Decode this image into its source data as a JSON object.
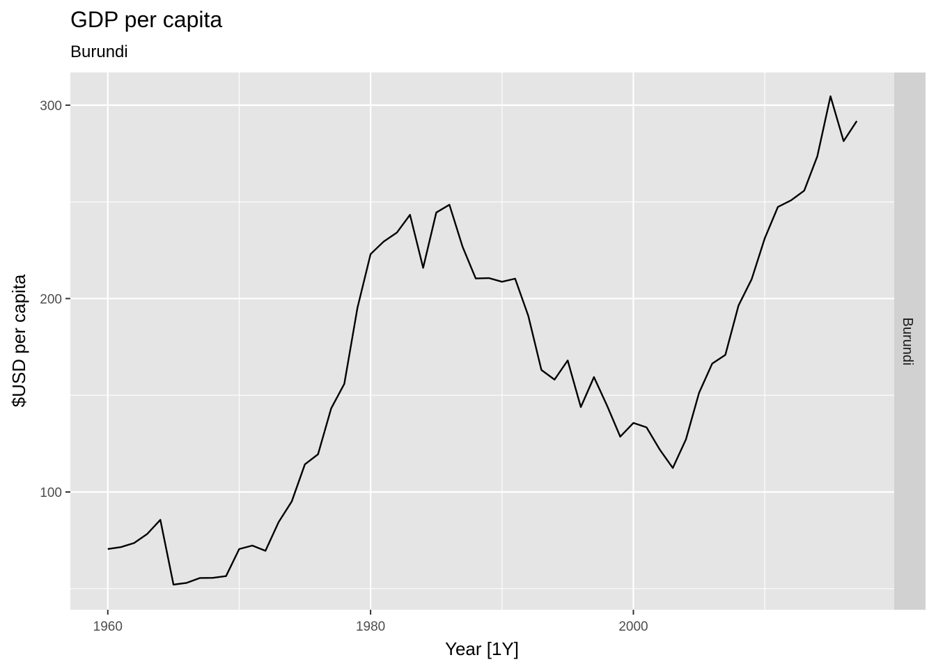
{
  "chart_data": {
    "type": "line",
    "title": "GDP per capita",
    "subtitle": "Burundi",
    "xlabel": "Year [1Y]",
    "ylabel": "$USD per capita",
    "facet_label": "Burundi",
    "xlim": [
      1957.15,
      2019.85
    ],
    "ylim": [
      39.1,
      316.9
    ],
    "x_ticks": [
      1960,
      1980,
      2000
    ],
    "y_ticks": [
      100,
      200,
      300
    ],
    "x_minor": [
      1970,
      1990,
      2010
    ],
    "y_minor": [
      50,
      150,
      250
    ],
    "grid": true,
    "line_color": "#000000",
    "panel_color": "#e5e5e5",
    "strip_color": "#d1d1d1",
    "series": [
      {
        "x": [
          1960,
          1961,
          1962,
          1963,
          1964,
          1965,
          1966,
          1967,
          1968,
          1969,
          1970,
          1971,
          1972,
          1973,
          1974,
          1975,
          1976,
          1977,
          1978,
          1979,
          1980,
          1981,
          1982,
          1983,
          1984,
          1985,
          1986,
          1987,
          1988,
          1989,
          1990,
          1991,
          1992,
          1993,
          1994,
          1995,
          1996,
          1997,
          1998,
          1999,
          2000,
          2001,
          2002,
          2003,
          2004,
          2005,
          2006,
          2007,
          2008,
          2009,
          2010,
          2011,
          2012,
          2013,
          2014,
          2015,
          2016,
          2017
        ],
        "values": [
          70.5,
          71.5,
          73.6,
          78.3,
          85.6,
          52.1,
          53.0,
          55.5,
          55.6,
          56.5,
          70.5,
          72.3,
          69.6,
          84.4,
          95.1,
          114.3,
          119.5,
          143.2,
          155.9,
          195.2,
          223.0,
          229.5,
          234.1,
          243.3,
          215.9,
          244.5,
          248.5,
          226.8,
          210.4,
          210.6,
          208.7,
          210.3,
          191.1,
          163.1,
          158.1,
          168.0,
          143.9,
          159.4,
          144.6,
          128.6,
          135.7,
          133.4,
          122.0,
          112.4,
          127.2,
          151.3,
          166.4,
          170.9,
          196.4,
          210.0,
          231.2,
          247.4,
          250.8,
          255.8,
          273.6,
          304.6,
          281.4,
          291.8
        ]
      }
    ]
  }
}
